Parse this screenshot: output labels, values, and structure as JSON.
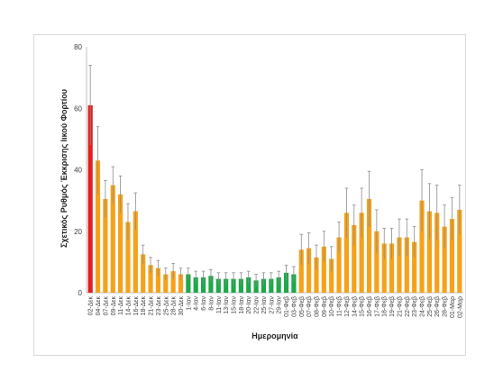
{
  "chart_data": {
    "type": "bar",
    "title": "",
    "xlabel": "Ημερομηνία",
    "ylabel": "Σχετικός Ρυθμός Έκκρισης Ιικού Φορτίου",
    "ylim": [
      0,
      80
    ],
    "yticks": [
      0,
      20,
      40,
      60,
      80
    ],
    "grid": false,
    "legend": "none",
    "colors": {
      "red": "#e21e1e",
      "orange": "#f5a21b",
      "green": "#1ea84a",
      "error_bar": "#8c8c8c"
    },
    "categories": [
      "02-Δεκ",
      "04-Δεκ",
      "07-Δεκ",
      "09-Δεκ",
      "11-Δεκ",
      "14-Δεκ",
      "16-Δεκ",
      "18-Δεκ",
      "21-Δεκ",
      "23-Δεκ",
      "25-Δεκ",
      "28-Δεκ",
      "30-Δεκ",
      "1-Ιαν",
      "4-Ιαν",
      "6-Ιαν",
      "8-Ιαν",
      "11-Ιαν",
      "13-Ιαν",
      "15-Ιαν",
      "18-Ιαν",
      "20-Ιαν",
      "22-Ιαν",
      "25-Ιαν",
      "27-Ιαν",
      "29-Ιαν",
      "01-Φεβ",
      "03-Φεβ",
      "05-Φεβ",
      "07-Φεβ",
      "08-Φεβ",
      "09-Φεβ",
      "10-Φεβ",
      "11-Φεβ",
      "12-Φεβ",
      "14-Φεβ",
      "15-Φεβ",
      "16-Φεβ",
      "17-Φεβ",
      "18-Φεβ",
      "19-Φεβ",
      "21-Φεβ",
      "22-Φεβ",
      "23-Φεβ",
      "24-Φεβ",
      "25-Φεβ",
      "26-Φεβ",
      "28-Φεβ",
      "01-Μαρ",
      "02-Μαρ"
    ],
    "values": [
      61,
      43,
      30.5,
      35,
      32,
      23,
      26.5,
      12.5,
      9,
      8,
      6,
      7,
      6,
      6,
      5,
      5,
      5.5,
      4.5,
      4.5,
      4.5,
      4.5,
      5,
      4,
      4.5,
      4.5,
      5,
      6.5,
      6,
      14,
      14.5,
      11.5,
      15,
      11,
      18,
      26,
      22,
      26,
      30.5,
      20,
      16,
      16,
      18,
      18,
      16.5,
      30,
      26.5,
      26,
      21.5,
      24,
      27
    ],
    "errors": [
      13,
      11,
      6,
      6,
      6,
      6,
      6,
      3,
      2.5,
      2.5,
      2,
      2.5,
      2,
      2,
      2,
      2,
      2,
      2,
      2,
      2,
      2,
      2,
      2,
      2,
      2,
      2,
      2.5,
      2.5,
      5,
      5,
      4,
      5,
      4,
      5,
      8,
      6.5,
      8,
      9,
      7,
      5,
      5,
      6,
      6,
      5,
      10,
      9,
      9,
      7,
      7,
      8
    ],
    "bar_colors": [
      "red",
      "orange",
      "orange",
      "orange",
      "orange",
      "orange",
      "orange",
      "orange",
      "orange",
      "orange",
      "orange",
      "orange",
      "orange",
      "green",
      "green",
      "green",
      "green",
      "green",
      "green",
      "green",
      "green",
      "green",
      "green",
      "green",
      "green",
      "green",
      "green",
      "green",
      "orange",
      "orange",
      "orange",
      "orange",
      "orange",
      "orange",
      "orange",
      "orange",
      "orange",
      "orange",
      "orange",
      "orange",
      "orange",
      "orange",
      "orange",
      "orange",
      "orange",
      "orange",
      "orange",
      "orange",
      "orange",
      "orange"
    ]
  }
}
